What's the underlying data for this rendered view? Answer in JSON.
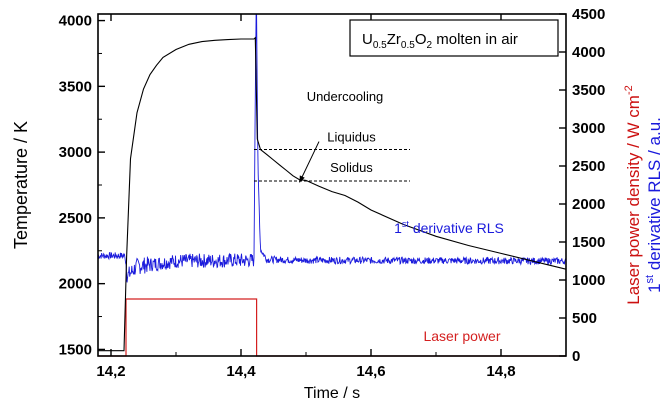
{
  "chart_data": {
    "type": "line",
    "xlabel": "Time / s",
    "ylabel_left": "Temperature / K",
    "ylabel_right_part1": "Laser power density / W cm",
    "ylabel_right_sup": "-2",
    "ylabel_right_part2": "1",
    "ylabel_right_sup2": "st",
    "ylabel_right_part3": " derivative RLS / a.u.",
    "xlim": [
      14.18,
      14.9
    ],
    "ylim_left": [
      1450,
      4050
    ],
    "ylim_right": [
      0,
      4500
    ],
    "x_ticks": [
      14.2,
      14.4,
      14.6,
      14.8
    ],
    "x_tick_labels": [
      "14,2",
      "14,4",
      "14,6",
      "14,8"
    ],
    "y_left_ticks": [
      1500,
      2000,
      2500,
      3000,
      3500,
      4000
    ],
    "y_left_tick_labels": [
      "1500",
      "2000",
      "2500",
      "3000",
      "3500",
      "4000"
    ],
    "y_right_ticks": [
      0,
      500,
      1000,
      1500,
      2000,
      2500,
      3000,
      3500,
      4000,
      4500
    ],
    "y_right_tick_labels": [
      "0",
      "500",
      "1000",
      "1500",
      "2000",
      "2500",
      "3000",
      "3500",
      "4000",
      "4500"
    ],
    "legend_box": {
      "u": "U",
      "u_sub": "0.5",
      "zr": "Zr",
      "zr_sub": "0.5",
      "o": "O",
      "o_sub": "2",
      "rest": " molten in air"
    },
    "colors": {
      "temperature": "#000000",
      "rls": "#1a1adc",
      "laser": "#d42020",
      "laser_axis": "#cc1010",
      "rls_axis": "#1a1adc"
    },
    "series": [
      {
        "name": "temperature",
        "axis": "left",
        "x": [
          14.18,
          14.22,
          14.224,
          14.23,
          14.24,
          14.25,
          14.26,
          14.27,
          14.28,
          14.3,
          14.32,
          14.34,
          14.36,
          14.38,
          14.4,
          14.42,
          14.422,
          14.425,
          14.43,
          14.44,
          14.45,
          14.46,
          14.47,
          14.48,
          14.49,
          14.5,
          14.52,
          14.54,
          14.56,
          14.58,
          14.6,
          14.65,
          14.7,
          14.75,
          14.8,
          14.85,
          14.9
        ],
        "y": [
          1490,
          1490,
          2200,
          2950,
          3300,
          3480,
          3590,
          3660,
          3720,
          3780,
          3820,
          3840,
          3850,
          3855,
          3860,
          3860,
          3870,
          3100,
          3020,
          2980,
          2940,
          2900,
          2860,
          2820,
          2790,
          2785,
          2740,
          2700,
          2670,
          2620,
          2560,
          2450,
          2360,
          2290,
          2230,
          2170,
          2110
        ]
      },
      {
        "name": "laser power",
        "axis": "right",
        "x": [
          14.18,
          14.223,
          14.223,
          14.424,
          14.424,
          14.9
        ],
        "y": [
          0,
          0,
          750,
          750,
          0,
          0
        ]
      },
      {
        "name": "1st derivative RLS",
        "axis": "right",
        "baseline_x": [
          14.18,
          14.222,
          14.225,
          14.24,
          14.3,
          14.42,
          14.423,
          14.424,
          14.426,
          14.43,
          14.44,
          14.5,
          14.9
        ],
        "baseline_y": [
          1320,
          1320,
          1050,
          1180,
          1250,
          1260,
          4500,
          4500,
          2500,
          1400,
          1270,
          1260,
          1250
        ]
      }
    ],
    "annotations": {
      "undercooling": "Undercooling",
      "liquidus": "Liquidus",
      "solidus": "Solidus",
      "rls_label_pre": "1",
      "rls_label_sup": "st",
      "rls_label_post": " derivative RLS",
      "laser_label": "Laser power",
      "liquidus_x": [
        14.42,
        14.66
      ],
      "liquidus_y": 3020,
      "solidus_x": [
        14.42,
        14.66
      ],
      "solidus_y": 2780,
      "undercooling_arrow_from": [
        14.52,
        3080
      ],
      "undercooling_arrow_to": [
        14.49,
        2770
      ],
      "undercooling_text_at": [
        14.56,
        3390
      ],
      "liquidus_text_at": [
        14.57,
        3080
      ],
      "solidus_text_at": [
        14.57,
        2850
      ],
      "rls_text_at": [
        14.72,
        1620
      ],
      "laser_text_at": [
        14.74,
        200
      ]
    },
    "grid": false,
    "legend_placement": "top-right"
  }
}
